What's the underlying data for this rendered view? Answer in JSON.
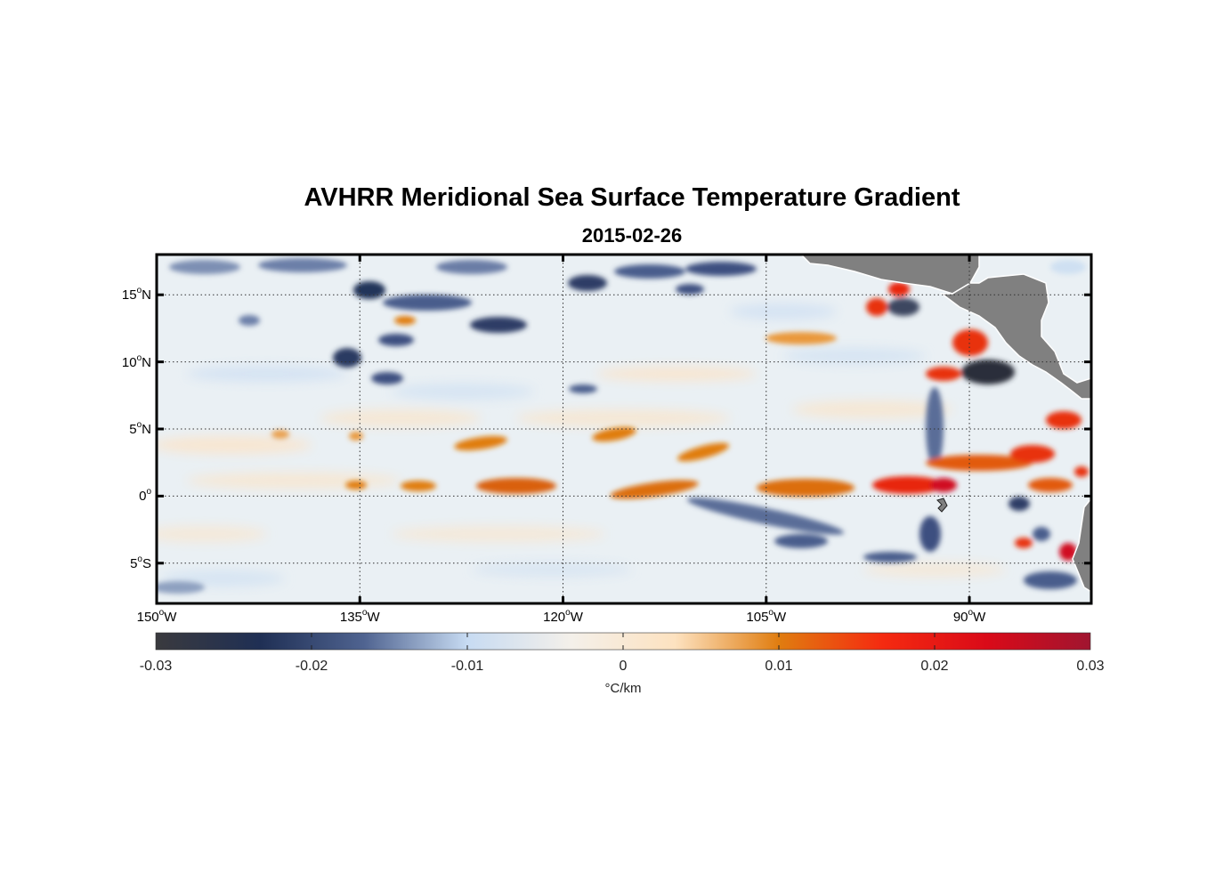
{
  "title": "AVHRR Meridional Sea Surface Temperature Gradient",
  "subtitle": "2015-02-26",
  "map": {
    "lon_range": [
      -150,
      -81
    ],
    "lat_range": [
      -8,
      18
    ],
    "grid": true,
    "land_color": "#808080",
    "lat_ticks": [
      {
        "value": 15,
        "num": "15",
        "sup": "o",
        "hem": "N"
      },
      {
        "value": 10,
        "num": "10",
        "sup": "o",
        "hem": "N"
      },
      {
        "value": 5,
        "num": "5",
        "sup": "o",
        "hem": "N"
      },
      {
        "value": 0,
        "num": "0",
        "sup": "o",
        "hem": ""
      },
      {
        "value": -5,
        "num": "5",
        "sup": "o",
        "hem": "S"
      }
    ],
    "lon_ticks": [
      {
        "value": -150,
        "num": "150",
        "sup": "o",
        "hem": "W"
      },
      {
        "value": -135,
        "num": "135",
        "sup": "o",
        "hem": "W"
      },
      {
        "value": -120,
        "num": "120",
        "sup": "o",
        "hem": "W"
      },
      {
        "value": -105,
        "num": "105",
        "sup": "o",
        "hem": "W"
      },
      {
        "value": -90,
        "num": "90",
        "sup": "o",
        "hem": "W"
      }
    ]
  },
  "colorbar": {
    "range": [
      -0.03,
      0.03
    ],
    "ticks": [
      "-0.03",
      "-0.02",
      "-0.01",
      "0",
      "0.01",
      "0.02",
      "0.03"
    ],
    "unit": "°C/km",
    "stops": [
      "#3a3a3e",
      "#1f2f54",
      "#4f6390",
      "#c7dbf2",
      "#f4f0ea",
      "#fde2c0",
      "#e07d10",
      "#f52a10",
      "#da0a18",
      "#a01530"
    ]
  }
}
